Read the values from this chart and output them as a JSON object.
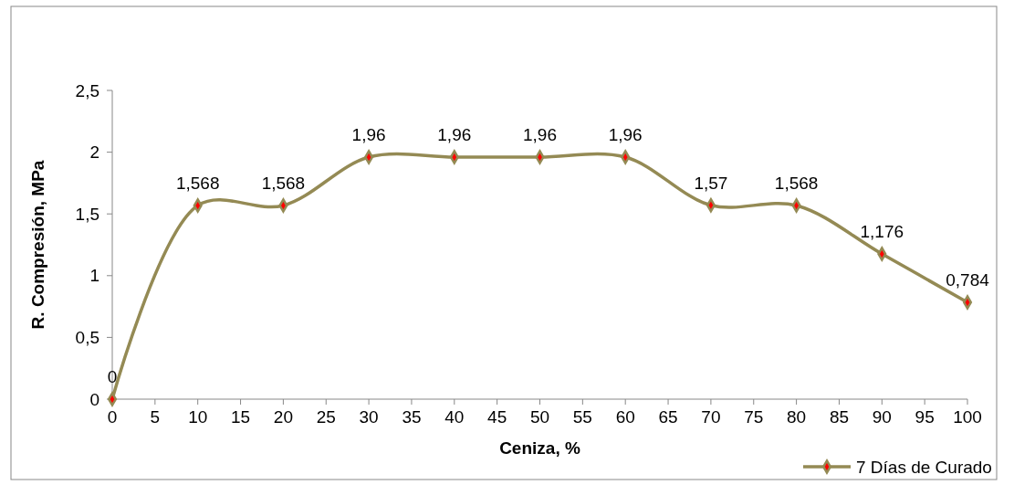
{
  "chart_data": {
    "type": "line",
    "xlabel": "Ceniza, %",
    "ylabel": "R. Compresión, MPa",
    "x": [
      0,
      10,
      20,
      30,
      40,
      50,
      60,
      70,
      80,
      90,
      100
    ],
    "series": [
      {
        "name": "7 Días de Curado",
        "color": "#948a54",
        "values": [
          0,
          1.568,
          1.568,
          1.96,
          1.96,
          1.96,
          1.96,
          1.57,
          1.568,
          1.176,
          0.784
        ],
        "value_labels": [
          "0",
          "1,568",
          "1,568",
          "1,96",
          "1,96",
          "1,96",
          "1,96",
          "1,57",
          "1,568",
          "1,176",
          "0,784"
        ]
      }
    ],
    "xlim": [
      0,
      100
    ],
    "xticks": [
      0,
      5,
      10,
      15,
      20,
      25,
      30,
      35,
      40,
      45,
      50,
      55,
      60,
      65,
      70,
      75,
      80,
      85,
      90,
      95,
      100
    ],
    "ylim": [
      0,
      2.5
    ],
    "yticks": [
      0,
      {
        "value": 0.5,
        "label": "0,5"
      },
      1,
      {
        "value": 1.5,
        "label": "1,5"
      },
      2,
      {
        "value": 2.5,
        "label": "2,5"
      }
    ],
    "grid": false,
    "legend": "bottom right",
    "marker": "diamond",
    "line_style": "solid"
  }
}
